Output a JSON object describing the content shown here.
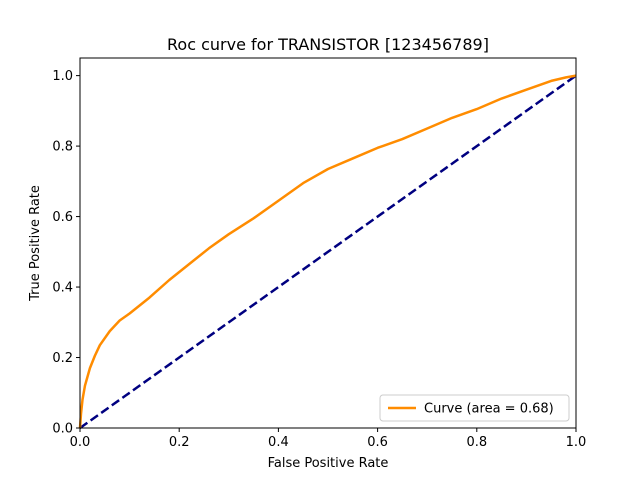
{
  "chart_data": {
    "type": "line",
    "title": "Roc curve for TRANSISTOR [123456789]",
    "xlabel": "False Positive Rate",
    "ylabel": "True Positive Rate",
    "xlim": [
      0.0,
      1.0
    ],
    "ylim": [
      0.0,
      1.05
    ],
    "x_ticks": [
      "0.0",
      "0.2",
      "0.4",
      "0.6",
      "0.8",
      "1.0"
    ],
    "y_ticks": [
      "0.0",
      "0.2",
      "0.4",
      "0.6",
      "0.8",
      "1.0"
    ],
    "grid": false,
    "legend_position": "lower-right",
    "series": [
      {
        "name": "Curve (area = 0.68)",
        "color": "#ff8c00",
        "style": "solid",
        "x": [
          0.0,
          0.002,
          0.005,
          0.01,
          0.02,
          0.03,
          0.04,
          0.06,
          0.08,
          0.1,
          0.14,
          0.18,
          0.22,
          0.26,
          0.3,
          0.35,
          0.4,
          0.45,
          0.5,
          0.55,
          0.6,
          0.65,
          0.7,
          0.75,
          0.8,
          0.85,
          0.9,
          0.95,
          0.98,
          1.0
        ],
        "y": [
          0.0,
          0.04,
          0.08,
          0.12,
          0.17,
          0.205,
          0.235,
          0.275,
          0.305,
          0.325,
          0.37,
          0.42,
          0.465,
          0.51,
          0.55,
          0.595,
          0.645,
          0.695,
          0.735,
          0.765,
          0.795,
          0.82,
          0.85,
          0.88,
          0.905,
          0.935,
          0.96,
          0.985,
          0.995,
          1.0
        ]
      },
      {
        "name": "",
        "color": "#000080",
        "style": "dashed",
        "x": [
          0.0,
          1.0
        ],
        "y": [
          0.0,
          1.0
        ]
      }
    ]
  }
}
